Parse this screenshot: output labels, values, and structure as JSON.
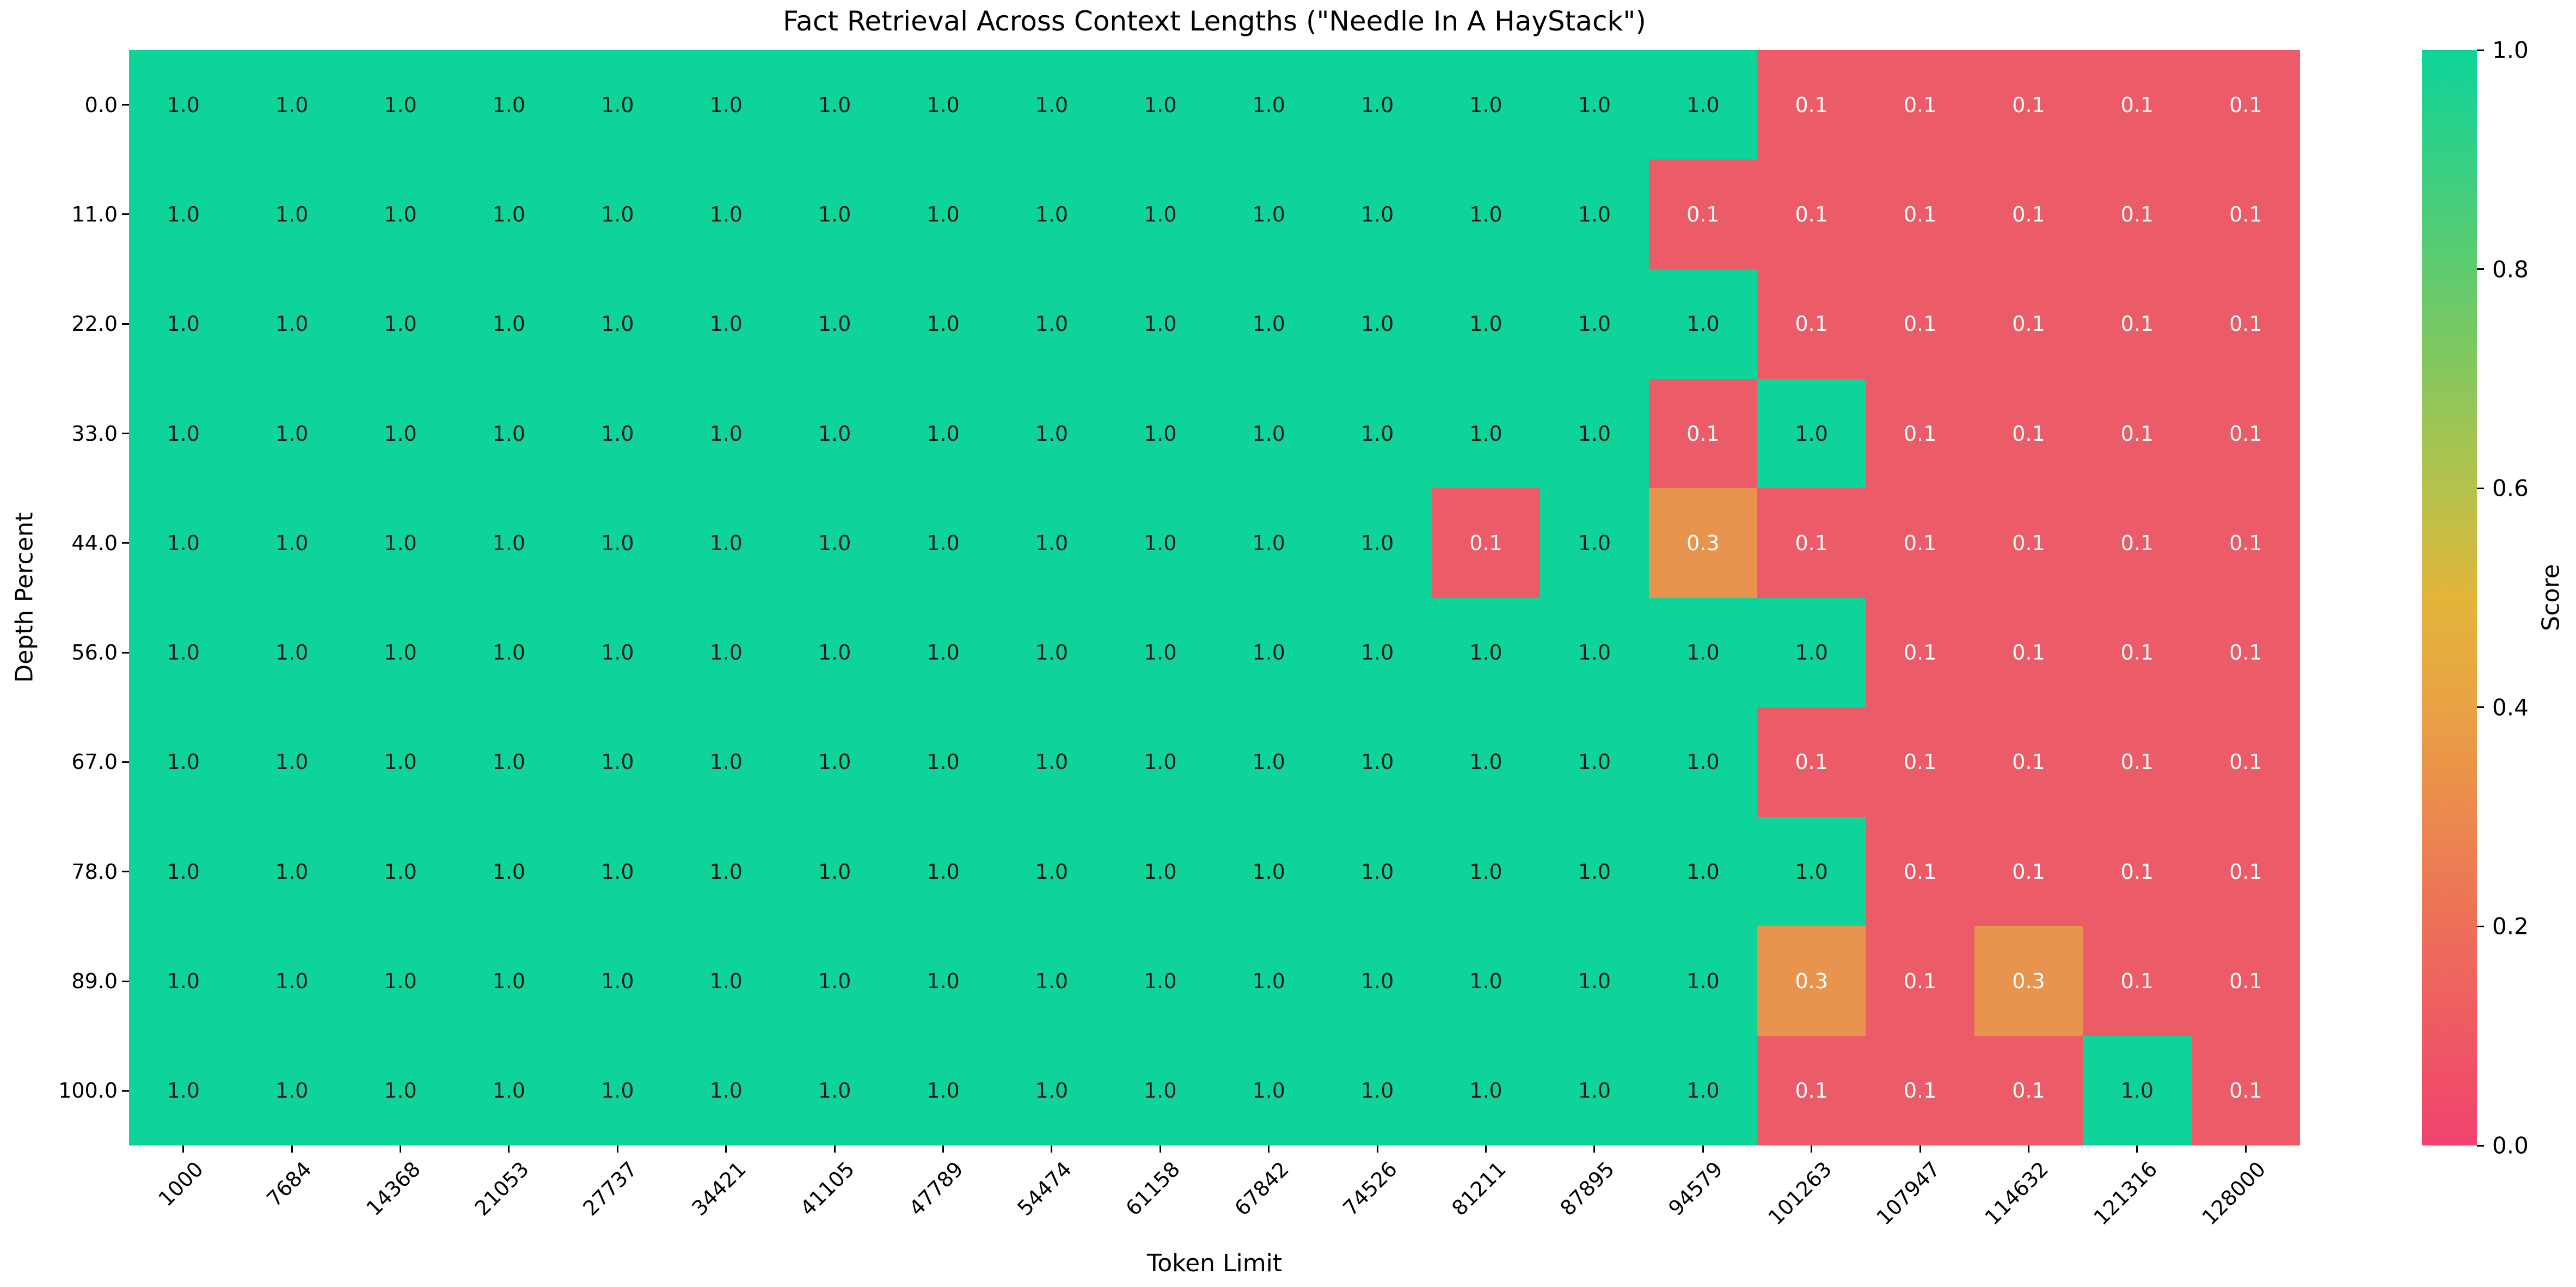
{
  "chart_data": {
    "type": "heatmap",
    "title": "Fact Retrieval Across Context Lengths (\"Needle In A HayStack\")",
    "xlabel": "Token Limit",
    "ylabel": "Depth Percent",
    "x_categories": [
      "1000",
      "7684",
      "14368",
      "21053",
      "27737",
      "34421",
      "41105",
      "47789",
      "54474",
      "61158",
      "67842",
      "74526",
      "81211",
      "87895",
      "94579",
      "101263",
      "107947",
      "114632",
      "121316",
      "128000"
    ],
    "y_categories": [
      "0.0",
      "11.0",
      "22.0",
      "33.0",
      "44.0",
      "56.0",
      "67.0",
      "78.0",
      "89.0",
      "100.0"
    ],
    "values": [
      [
        1.0,
        1.0,
        1.0,
        1.0,
        1.0,
        1.0,
        1.0,
        1.0,
        1.0,
        1.0,
        1.0,
        1.0,
        1.0,
        1.0,
        1.0,
        0.1,
        0.1,
        0.1,
        0.1,
        0.1
      ],
      [
        1.0,
        1.0,
        1.0,
        1.0,
        1.0,
        1.0,
        1.0,
        1.0,
        1.0,
        1.0,
        1.0,
        1.0,
        1.0,
        1.0,
        0.1,
        0.1,
        0.1,
        0.1,
        0.1,
        0.1
      ],
      [
        1.0,
        1.0,
        1.0,
        1.0,
        1.0,
        1.0,
        1.0,
        1.0,
        1.0,
        1.0,
        1.0,
        1.0,
        1.0,
        1.0,
        1.0,
        0.1,
        0.1,
        0.1,
        0.1,
        0.1
      ],
      [
        1.0,
        1.0,
        1.0,
        1.0,
        1.0,
        1.0,
        1.0,
        1.0,
        1.0,
        1.0,
        1.0,
        1.0,
        1.0,
        1.0,
        0.1,
        1.0,
        0.1,
        0.1,
        0.1,
        0.1
      ],
      [
        1.0,
        1.0,
        1.0,
        1.0,
        1.0,
        1.0,
        1.0,
        1.0,
        1.0,
        1.0,
        1.0,
        1.0,
        0.1,
        1.0,
        0.3,
        0.1,
        0.1,
        0.1,
        0.1,
        0.1
      ],
      [
        1.0,
        1.0,
        1.0,
        1.0,
        1.0,
        1.0,
        1.0,
        1.0,
        1.0,
        1.0,
        1.0,
        1.0,
        1.0,
        1.0,
        1.0,
        1.0,
        0.1,
        0.1,
        0.1,
        0.1
      ],
      [
        1.0,
        1.0,
        1.0,
        1.0,
        1.0,
        1.0,
        1.0,
        1.0,
        1.0,
        1.0,
        1.0,
        1.0,
        1.0,
        1.0,
        1.0,
        0.1,
        0.1,
        0.1,
        0.1,
        0.1
      ],
      [
        1.0,
        1.0,
        1.0,
        1.0,
        1.0,
        1.0,
        1.0,
        1.0,
        1.0,
        1.0,
        1.0,
        1.0,
        1.0,
        1.0,
        1.0,
        1.0,
        0.1,
        0.1,
        0.1,
        0.1
      ],
      [
        1.0,
        1.0,
        1.0,
        1.0,
        1.0,
        1.0,
        1.0,
        1.0,
        1.0,
        1.0,
        1.0,
        1.0,
        1.0,
        1.0,
        1.0,
        0.3,
        0.1,
        0.3,
        0.1,
        0.1
      ],
      [
        1.0,
        1.0,
        1.0,
        1.0,
        1.0,
        1.0,
        1.0,
        1.0,
        1.0,
        1.0,
        1.0,
        1.0,
        1.0,
        1.0,
        1.0,
        0.1,
        0.1,
        0.1,
        1.0,
        0.1
      ]
    ],
    "vmin": 0.0,
    "vmax": 1.0,
    "grid": false,
    "colorbar": {
      "label": "Score",
      "position": "right",
      "ticks": [
        "1.0",
        "0.8",
        "0.6",
        "0.4",
        "0.2",
        "0.0"
      ],
      "vmin": 0.0,
      "vmax": 1.0,
      "gradient": [
        {
          "pos": "0%",
          "color": "#F0436F"
        },
        {
          "pos": "20%",
          "color": "#ED6F59"
        },
        {
          "pos": "40%",
          "color": "#E9A244"
        },
        {
          "pos": "50%",
          "color": "#E2B53A"
        },
        {
          "pos": "60%",
          "color": "#B5C24B"
        },
        {
          "pos": "80%",
          "color": "#5FCB6E"
        },
        {
          "pos": "100%",
          "color": "#0ED49A"
        }
      ]
    },
    "colors": {
      "high": "#0ED49A",
      "mid": "#E8944E",
      "low": "#EC5C68",
      "text_on_high": "#1a1a1a",
      "text_on_low": "#ffffff"
    }
  }
}
